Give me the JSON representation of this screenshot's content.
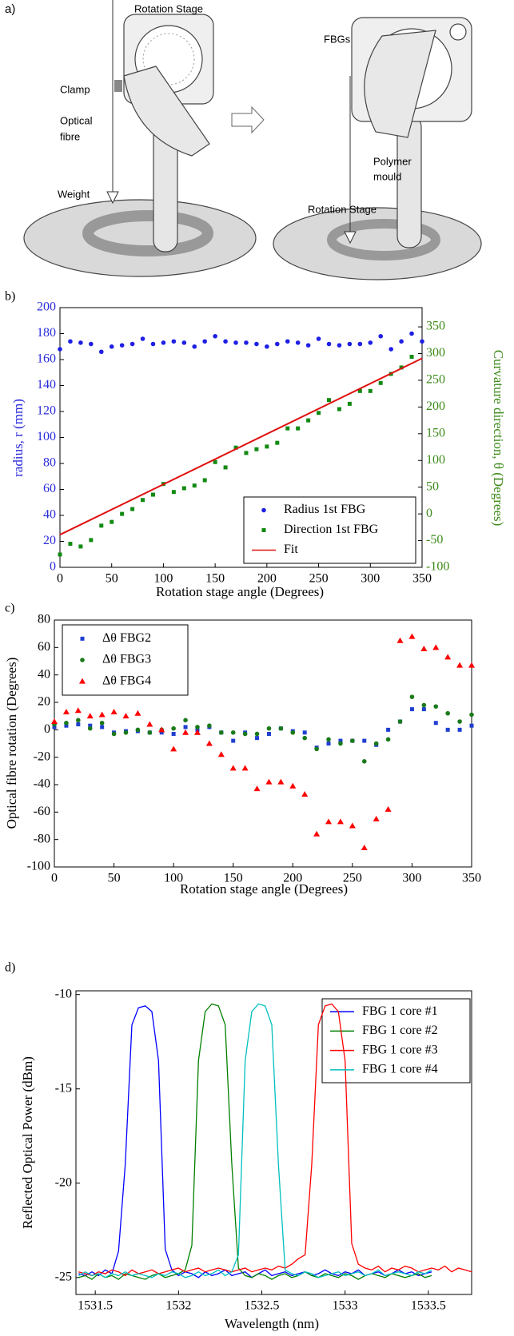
{
  "diagram": {
    "panel_label": "a)",
    "left": {
      "stage": "Rotation Stage",
      "clamp": "Clamp",
      "fibre": [
        "Optical",
        "fibre"
      ],
      "weight": "Weight"
    },
    "right": {
      "fbgs": "FBGs",
      "mould": [
        "Polymer",
        "mould"
      ],
      "stage": "Rotation Stage"
    }
  },
  "chart_data": [
    {
      "type": "scatter",
      "label": "b)",
      "xlabel": "Rotation stage angle (Degrees)",
      "ylabel": "radius, r (mm)",
      "y2label": "Curvature direction, θ (Degrees)",
      "ycolor": "#2b2bdb",
      "y2color": "#3d8b1a",
      "x": [
        0,
        10,
        20,
        30,
        40,
        50,
        60,
        70,
        80,
        90,
        100,
        110,
        120,
        130,
        140,
        150,
        160,
        170,
        180,
        190,
        200,
        210,
        220,
        230,
        240,
        250,
        260,
        270,
        280,
        290,
        300,
        310,
        320,
        330,
        340,
        350
      ],
      "xlim": [
        0,
        350
      ],
      "xticks": [
        0,
        50,
        100,
        150,
        200,
        250,
        300,
        350
      ],
      "ylim": [
        0,
        200
      ],
      "yticks": [
        0,
        20,
        40,
        60,
        80,
        100,
        120,
        140,
        160,
        180,
        200
      ],
      "y2lim": [
        -100,
        386
      ],
      "y2ticks": [
        -100,
        -50,
        0,
        50,
        100,
        150,
        200,
        250,
        300,
        350
      ],
      "series": [
        {
          "name": "Radius 1st FBG",
          "color": "#1f1fe6",
          "marker": "circle",
          "values": [
            168,
            174,
            173,
            172,
            166,
            170,
            171,
            172,
            176,
            172,
            173,
            174,
            173,
            170,
            174,
            178,
            174,
            173,
            173,
            172,
            170,
            172,
            174,
            173,
            171,
            176,
            172,
            171,
            172,
            172,
            173,
            178,
            168,
            174,
            180,
            174
          ]
        },
        {
          "name": "Direction 1st FBG",
          "color": "#128a12",
          "marker": "square",
          "axis": "y2",
          "values": [
            -76,
            -56,
            -61,
            -49,
            -22,
            -15,
            0,
            9,
            26,
            36,
            56,
            41,
            48,
            53,
            63,
            97,
            87,
            124,
            114,
            121,
            126,
            133,
            160,
            160,
            175,
            189,
            213,
            196,
            206,
            230,
            230,
            245,
            262,
            274,
            294,
            null
          ]
        },
        {
          "name": "Fit",
          "color": "#e01010",
          "marker": "line",
          "axis": "y2",
          "x": [
            0,
            350
          ],
          "values": [
            -39,
            291
          ]
        }
      ]
    },
    {
      "type": "scatter",
      "label": "c)",
      "xlabel": "Rotation stage angle (Degrees)",
      "ylabel": "Optical fibre rotation (Degrees)",
      "x": [
        0,
        10,
        20,
        30,
        40,
        50,
        60,
        70,
        80,
        90,
        100,
        110,
        120,
        130,
        140,
        150,
        160,
        170,
        180,
        190,
        200,
        210,
        220,
        230,
        240,
        250,
        260,
        270,
        280,
        290,
        300,
        310,
        320,
        330,
        340,
        350
      ],
      "xlim": [
        0,
        350
      ],
      "xticks": [
        0,
        50,
        100,
        150,
        200,
        250,
        300,
        350
      ],
      "ylim": [
        -100,
        80
      ],
      "yticks": [
        -100,
        -80,
        -60,
        -40,
        -20,
        0,
        20,
        40,
        60,
        80
      ],
      "series": [
        {
          "name": "Δθ FBG2",
          "color": "#1f3fcf",
          "marker": "square",
          "values": [
            2,
            3,
            4,
            3,
            2,
            -2,
            -1,
            -1,
            -2,
            -2,
            -3,
            2,
            0,
            2,
            -2,
            -8,
            -2,
            -6,
            -3,
            1,
            -1,
            -2,
            -13,
            -10,
            -8,
            -8,
            -8,
            -11,
            0,
            6,
            15,
            15,
            5,
            0,
            0,
            3
          ]
        },
        {
          "name": "Δθ FBG3",
          "color": "#1a7a1a",
          "marker": "circle",
          "values": [
            4,
            5,
            7,
            1,
            5,
            -3,
            -2,
            0,
            -2,
            0,
            1,
            7,
            2,
            3,
            -2,
            -2,
            -3,
            -3,
            1,
            1,
            -2,
            -6,
            -14,
            -7,
            -10,
            -8,
            -23,
            -10,
            -7,
            6,
            24,
            18,
            17,
            12,
            6,
            11
          ]
        },
        {
          "name": "Δθ FBG4",
          "color": "#ff0000",
          "marker": "triangle",
          "values": [
            6,
            13,
            14,
            10,
            11,
            13,
            10,
            12,
            4,
            0,
            -14,
            -2,
            -2,
            -10,
            -18,
            -28,
            -28,
            -43,
            -38,
            -38,
            -41,
            -47,
            -76,
            -67,
            -67,
            -70,
            -86,
            -65,
            -58,
            65,
            68,
            59,
            60,
            53,
            47,
            47
          ]
        }
      ]
    },
    {
      "type": "line",
      "label": "d)",
      "xlabel": "Wavelength (nm)",
      "ylabel": "Reflected Optical Power (dBm)",
      "x": [
        1531.4,
        1531.44,
        1531.48,
        1531.52,
        1531.56,
        1531.6,
        1531.64,
        1531.68,
        1531.72,
        1531.76,
        1531.8,
        1531.84,
        1531.88,
        1531.92,
        1531.96,
        1532,
        1532.04,
        1532.08,
        1532.12,
        1532.16,
        1532.2,
        1532.24,
        1532.28,
        1532.32,
        1532.36,
        1532.4,
        1532.44,
        1532.48,
        1532.52,
        1532.56,
        1532.6,
        1532.64,
        1532.68,
        1532.72,
        1532.76,
        1532.8,
        1532.84,
        1532.88,
        1532.92,
        1532.96,
        1533,
        1533.04,
        1533.08,
        1533.12,
        1533.16,
        1533.2,
        1533.24,
        1533.28,
        1533.32,
        1533.36,
        1533.4,
        1533.44,
        1533.48,
        1533.52,
        1533.56,
        1533.6,
        1533.64,
        1533.68,
        1533.72,
        1533.76
      ],
      "xlim": [
        1531.384,
        1533.76
      ],
      "xticks": [
        1531.5,
        1532,
        1532.5,
        1533,
        1533.5
      ],
      "ylim": [
        -25.9,
        -9.8
      ],
      "yticks": [
        -25,
        -20,
        -15,
        -10
      ],
      "series": [
        {
          "name": "FBG 1 core #1",
          "color": "#0000ff",
          "marker": "line",
          "values": [
            -24.8,
            -24.9,
            -24.7,
            -24.9,
            -24.6,
            -24.8,
            -23.6,
            -19,
            -11.6,
            -10.7,
            -10.6,
            -10.9,
            -13.5,
            -23.5,
            -24.6,
            -24.9,
            -24.7,
            -24.8,
            -25,
            -24.7,
            -24.9,
            -24.8,
            -24.6,
            -24.9,
            -24.8,
            -24.7,
            -25,
            -24.8,
            -24.6,
            -24.9,
            -24.8,
            -24.7,
            -24.9,
            -24.8,
            -24.7,
            -24.9,
            -24.8,
            -24.6,
            -24.8,
            -24.9,
            -24.7,
            -24.8,
            -24.6,
            -24.9,
            -24.8,
            -24.7,
            -24.9,
            -24.8,
            -24.6,
            -24.8,
            -24.7,
            -24.9,
            -24.8,
            -24.7,
            null,
            null,
            null,
            null,
            null,
            null
          ]
        },
        {
          "name": "FBG 1 core #2",
          "color": "#008000",
          "marker": "line",
          "values": [
            -25,
            -24.9,
            -25.1,
            -24.8,
            -25,
            -24.9,
            -25.1,
            -24.8,
            -24.9,
            -25,
            -25.1,
            -24.9,
            -24.8,
            -25,
            -24.9,
            -24.8,
            -24.6,
            -23.3,
            -13.5,
            -10.9,
            -10.5,
            -10.6,
            -11.6,
            -19,
            -24.5,
            -24.9,
            -25,
            -24.8,
            -24.9,
            -25.1,
            -24.9,
            -24.8,
            -25,
            -24.9,
            -24.7,
            -24.9,
            -25,
            -24.8,
            -24.9,
            -25,
            -24.8,
            -24.9,
            -25.1,
            -24.9,
            -24.8,
            -24.9,
            -25,
            -24.8,
            -24.9,
            -25,
            -24.9,
            -24.8,
            -25,
            -24.9,
            null,
            null,
            null,
            null,
            null,
            null
          ]
        },
        {
          "name": "FBG 1 core #3",
          "color": "#ff0000",
          "marker": "line",
          "values": [
            -24.7,
            -24.8,
            -24.9,
            -24.7,
            -24.8,
            -24.6,
            -24.7,
            -24.9,
            -24.6,
            -24.8,
            -24.7,
            -24.6,
            -24.8,
            -24.7,
            -24.6,
            -24.5,
            -24.7,
            -24.6,
            -24.5,
            -24.7,
            -24.6,
            -24.5,
            -24.6,
            -24.7,
            -24.6,
            -24.5,
            -24.7,
            -24.6,
            -24.5,
            -24.6,
            -24.4,
            -24.5,
            -24.3,
            -24,
            -23.8,
            -19,
            -11.6,
            -10.6,
            -10.5,
            -10.9,
            -13.5,
            -23.2,
            -24.3,
            -24.5,
            -24.6,
            -24.4,
            -24.7,
            -24.5,
            -24.6,
            -24.4,
            -24.5,
            -24.7,
            -24.6,
            -24.5,
            -24.6,
            -24.4,
            -24.7,
            -24.5,
            -24.6,
            -24.7
          ]
        },
        {
          "name": "FBG 1 core #4",
          "color": "#00bfbf",
          "marker": "line",
          "values": [
            -24.9,
            -24.7,
            -24.9,
            -24.8,
            -25,
            -24.8,
            -24.9,
            -24.7,
            -24.9,
            -24.8,
            -24.9,
            -25,
            -24.8,
            -24.9,
            -24.7,
            -24.8,
            -25,
            -24.9,
            -24.7,
            -24.9,
            -24.8,
            -24.6,
            -24.9,
            -24.7,
            -23.8,
            -13.5,
            -10.9,
            -10.5,
            -10.6,
            -11.6,
            -19,
            -24.6,
            -24.8,
            -24.9,
            -24.7,
            -24.8,
            -25,
            -24.9,
            -24.8,
            -24.7,
            -24.9,
            -24.8,
            -24.7,
            -24.9,
            -24.8,
            -24.6,
            -24.9,
            -24.8,
            -24.7,
            -24.8,
            -24.9,
            -24.7,
            -24.8,
            -24.6,
            null,
            null,
            null,
            null,
            null,
            null
          ]
        }
      ]
    }
  ]
}
